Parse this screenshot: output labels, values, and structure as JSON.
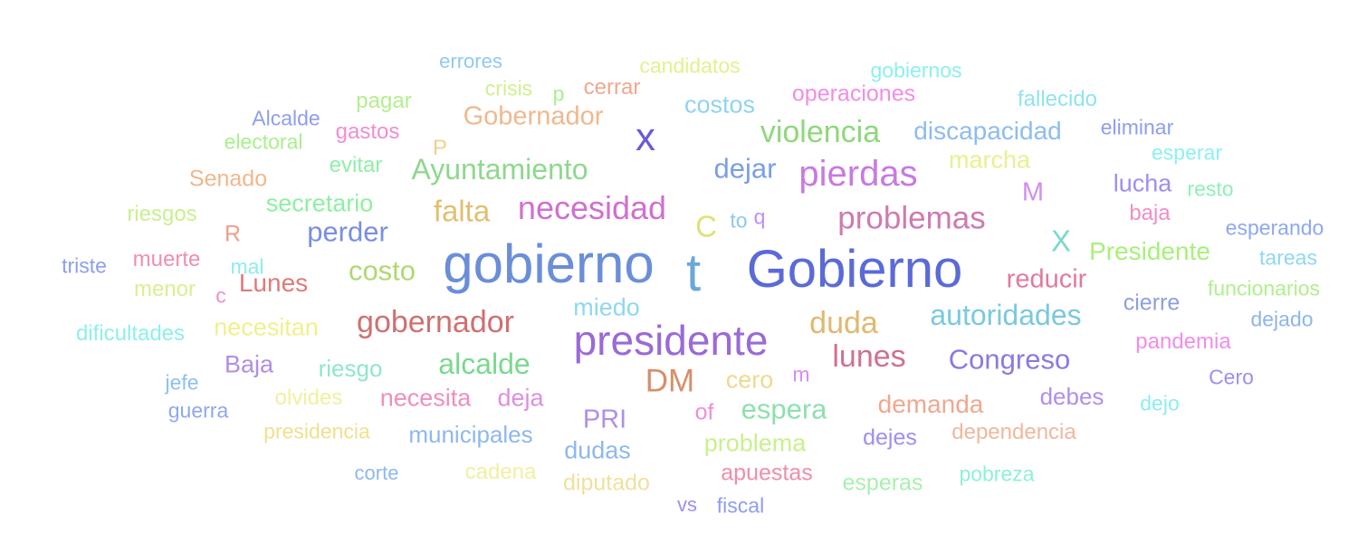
{
  "words": [
    {
      "text": "errores",
      "color": "#8ecbf0"
    },
    {
      "text": "candidatos",
      "color": "#e4f08e"
    },
    {
      "text": "gobiernos",
      "color": "#8eeef0"
    },
    {
      "text": "pagar",
      "color": "#b4ee8e"
    },
    {
      "text": "crisis",
      "color": "#d0f08e"
    },
    {
      "text": "p",
      "color": "#a8ee8e"
    },
    {
      "text": "cerrar",
      "color": "#f0a88e"
    },
    {
      "text": "operaciones",
      "color": "#f08ee4"
    },
    {
      "text": "fallecido",
      "color": "#8ee4f0"
    },
    {
      "text": "costos",
      "color": "#8ed4f0"
    },
    {
      "text": "Alcalde",
      "color": "#8e9ef0"
    },
    {
      "text": "gastos",
      "color": "#f08ed4"
    },
    {
      "text": "Gobernador",
      "color": "#f0b88e"
    },
    {
      "text": "x",
      "color": "#6a5ad8"
    },
    {
      "text": "violencia",
      "color": "#8ed87a"
    },
    {
      "text": "discapacidad",
      "color": "#8ebcf0"
    },
    {
      "text": "eliminar",
      "color": "#8e9ef0"
    },
    {
      "text": "electoral",
      "color": "#a8f08e"
    },
    {
      "text": "P",
      "color": "#f0d08e"
    },
    {
      "text": "esperar",
      "color": "#8ef0f0"
    },
    {
      "text": "evitar",
      "color": "#8ef0a8"
    },
    {
      "text": "Ayuntamiento",
      "color": "#8ed88e"
    },
    {
      "text": "dejar",
      "color": "#7a9ee8"
    },
    {
      "text": "pierdas",
      "color": "#c87ae0"
    },
    {
      "text": "marcha",
      "color": "#e8f08e"
    },
    {
      "text": "Senado",
      "color": "#f0b88e"
    },
    {
      "text": "lucha",
      "color": "#9e8ef0"
    },
    {
      "text": "resto",
      "color": "#8ef0b8"
    },
    {
      "text": "M",
      "color": "#d08ef0"
    },
    {
      "text": "secretario",
      "color": "#8ef0a0"
    },
    {
      "text": "riesgos",
      "color": "#c8f08e"
    },
    {
      "text": "falta",
      "color": "#e0c070"
    },
    {
      "text": "necesidad",
      "color": "#d070d0"
    },
    {
      "text": "C",
      "color": "#e0e07a"
    },
    {
      "text": "to",
      "color": "#8ec8f0"
    },
    {
      "text": "q",
      "color": "#c08ef0"
    },
    {
      "text": "problemas",
      "color": "#d07ab0"
    },
    {
      "text": "baja",
      "color": "#f08ec8"
    },
    {
      "text": "esperando",
      "color": "#8ea8f0"
    },
    {
      "text": "R",
      "color": "#f09e8e"
    },
    {
      "text": "perder",
      "color": "#7a8ee0"
    },
    {
      "text": "X",
      "color": "#7ad8d0"
    },
    {
      "text": "Presidente",
      "color": "#a8f07a"
    },
    {
      "text": "tareas",
      "color": "#8ed8f0"
    },
    {
      "text": "triste",
      "color": "#8e9ef0"
    },
    {
      "text": "muerte",
      "color": "#f08eb0"
    },
    {
      "text": "mal",
      "color": "#8eecf0"
    },
    {
      "text": "costo",
      "color": "#b0d870"
    },
    {
      "text": "gobierno",
      "color": "#6a8ed8"
    },
    {
      "text": "t",
      "color": "#6aa8d8"
    },
    {
      "text": "Gobierno",
      "color": "#5a6ad8"
    },
    {
      "text": "reducir",
      "color": "#e07a9e"
    },
    {
      "text": "menor",
      "color": "#d8f08e"
    },
    {
      "text": "c",
      "color": "#f08ed0"
    },
    {
      "text": "Lunes",
      "color": "#e07a7a"
    },
    {
      "text": "funcionarios",
      "color": "#b0f08e"
    },
    {
      "text": "miedo",
      "color": "#8ed8f0"
    },
    {
      "text": "cierre",
      "color": "#8e9ee0"
    },
    {
      "text": "dejado",
      "color": "#8eb4f0"
    },
    {
      "text": "dificultades",
      "color": "#8ef0e8"
    },
    {
      "text": "necesitan",
      "color": "#f0f08e"
    },
    {
      "text": "gobernador",
      "color": "#d07070"
    },
    {
      "text": "presidente",
      "color": "#9a6ad8"
    },
    {
      "text": "duda",
      "color": "#e0b870"
    },
    {
      "text": "autoridades",
      "color": "#7ac8e0"
    },
    {
      "text": "pandemia",
      "color": "#f08ee8"
    },
    {
      "text": "Baja",
      "color": "#b08ee8"
    },
    {
      "text": "riesgo",
      "color": "#8ee8c8"
    },
    {
      "text": "alcalde",
      "color": "#7ad88e"
    },
    {
      "text": "DM",
      "color": "#d88e6a"
    },
    {
      "text": "cero",
      "color": "#f0d88e"
    },
    {
      "text": "m",
      "color": "#d88ef0"
    },
    {
      "text": "lunes",
      "color": "#d07090"
    },
    {
      "text": "Congreso",
      "color": "#8a7ae0"
    },
    {
      "text": "jefe",
      "color": "#8ec0f0"
    },
    {
      "text": "Cero",
      "color": "#9e8ef0"
    },
    {
      "text": "olvides",
      "color": "#f0f0a0"
    },
    {
      "text": "necesita",
      "color": "#f08ec0"
    },
    {
      "text": "deja",
      "color": "#e08ee0"
    },
    {
      "text": "demanda",
      "color": "#f0a88e"
    },
    {
      "text": "debes",
      "color": "#b08ef0"
    },
    {
      "text": "dejo",
      "color": "#8eecf0"
    },
    {
      "text": "guerra",
      "color": "#8ea8f0"
    },
    {
      "text": "PRI",
      "color": "#b08ee8"
    },
    {
      "text": "of",
      "color": "#f08ed8"
    },
    {
      "text": "espera",
      "color": "#8ee0b0"
    },
    {
      "text": "presidencia",
      "color": "#f0e08e"
    },
    {
      "text": "municipales",
      "color": "#8eb8f0"
    },
    {
      "text": "dejes",
      "color": "#a08ef0"
    },
    {
      "text": "dependencia",
      "color": "#f0b89e"
    },
    {
      "text": "dudas",
      "color": "#8eb8f0"
    },
    {
      "text": "problema",
      "color": "#c8f08e"
    },
    {
      "text": "corte",
      "color": "#8eb8f0"
    },
    {
      "text": "cadena",
      "color": "#f0f0a0"
    },
    {
      "text": "diputado",
      "color": "#f0e09e"
    },
    {
      "text": "apuestas",
      "color": "#f08ea8"
    },
    {
      "text": "esperas",
      "color": "#a8f0b0"
    },
    {
      "text": "pobreza",
      "color": "#8ef0d8"
    },
    {
      "text": "vs",
      "color": "#9e8ef0"
    },
    {
      "text": "fiscal",
      "color": "#8e9ef0"
    }
  ]
}
